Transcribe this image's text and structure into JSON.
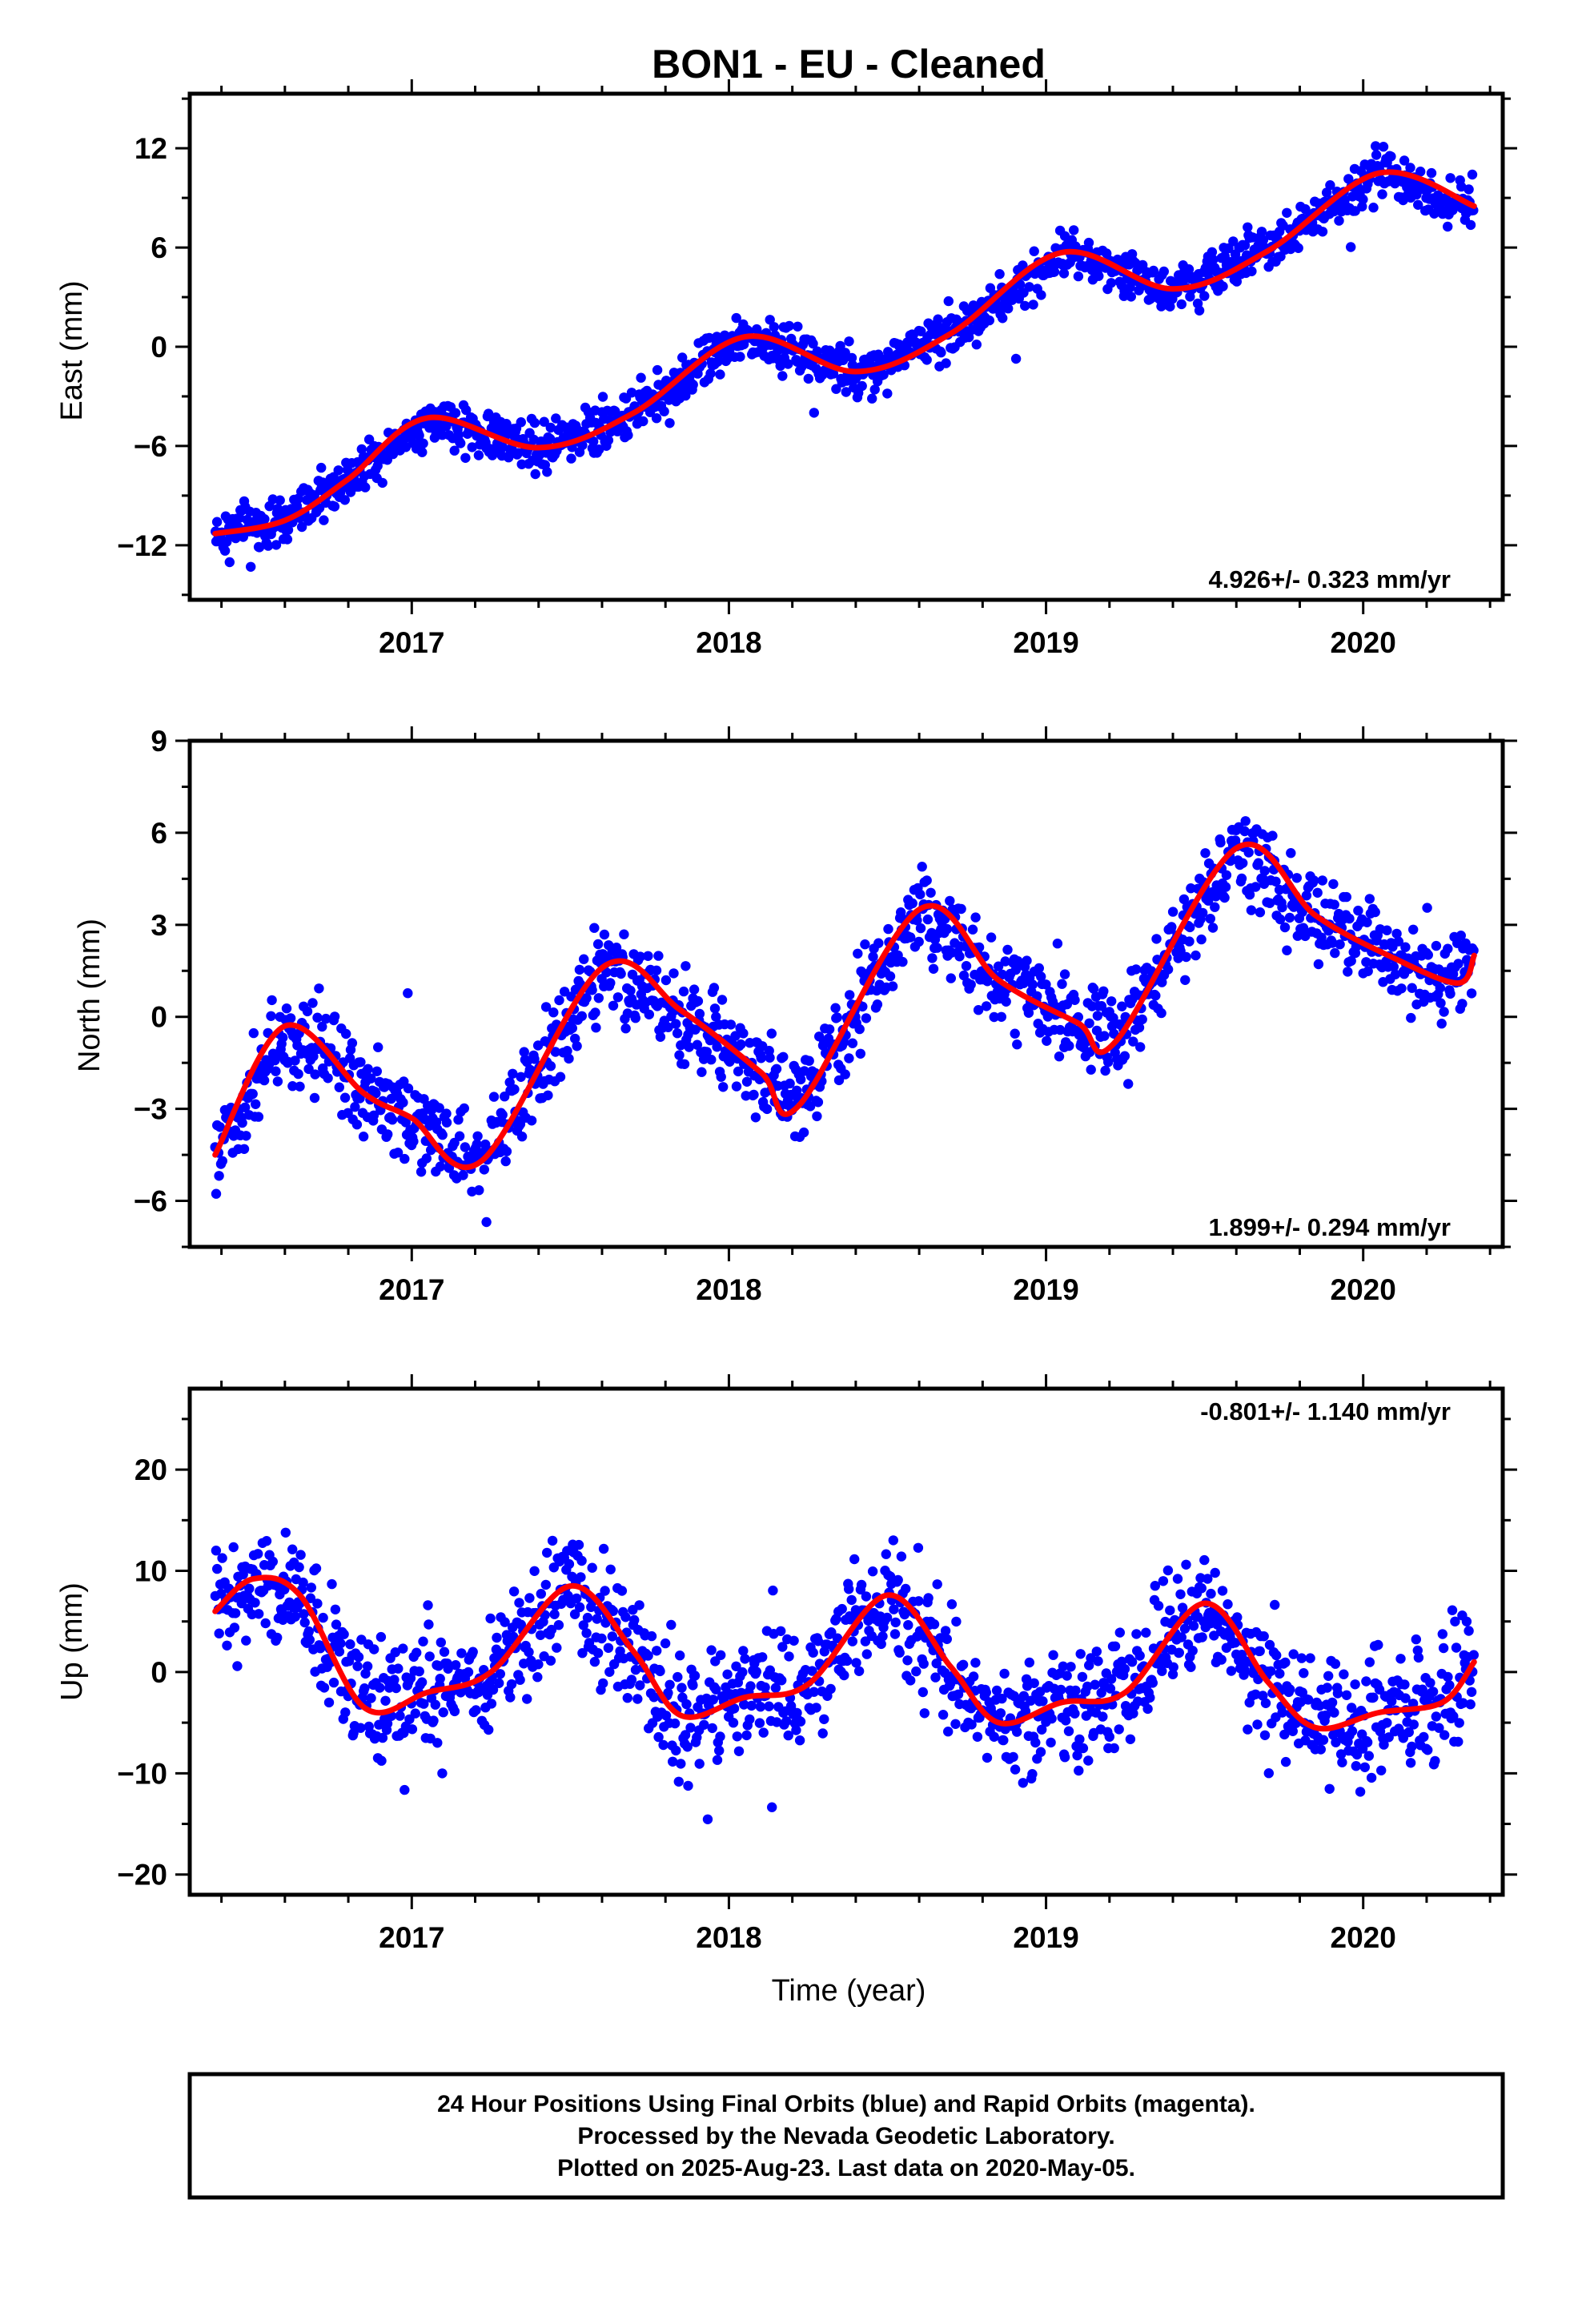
{
  "title": "BON1  - EU - Cleaned",
  "colors": {
    "final_orbits": "#0000ff",
    "fit": "#ff0000",
    "frame": "#000000",
    "background": "#ffffff"
  },
  "footer": {
    "line1": "24 Hour Positions Using Final Orbits (blue) and Rapid Orbits (magenta).",
    "line2": "Processed by the Nevada Geodetic Laboratory.",
    "line3": "Plotted on 2025-Aug-23. Last data on 2020-May-05."
  },
  "chart_data": [
    {
      "type": "scatter",
      "component": "east",
      "ylabel": "East (mm)",
      "xlabel": "",
      "rate_label": "4.926+/- 0.323 mm/yr",
      "rate_position": "bottom-right",
      "xlim": [
        2016.3,
        2020.44
      ],
      "ylim": [
        -15.3,
        15.3
      ],
      "xticks": [
        2017,
        2018,
        2019,
        2020
      ],
      "yticks": [
        -12,
        -6,
        0,
        6,
        12
      ],
      "grid": false,
      "trend_start": -11.5,
      "trend_rate": 4.926,
      "seasonal_amplitude": 2.2,
      "noise": 1.0,
      "points_per_year": 330,
      "fit_line": {
        "x": [
          2016.38,
          2016.6,
          2016.8,
          2017.05,
          2017.4,
          2017.7,
          2018.05,
          2018.4,
          2018.7,
          2019.05,
          2019.4,
          2019.7,
          2020.05,
          2020.35
        ],
        "y": [
          -11.3,
          -10.5,
          -8.0,
          -4.3,
          -6.1,
          -4.0,
          0.6,
          -1.5,
          0.8,
          5.7,
          3.5,
          5.8,
          10.5,
          8.5
        ]
      }
    },
    {
      "type": "scatter",
      "component": "north",
      "ylabel": "North (mm)",
      "xlabel": "",
      "rate_label": "1.899+/- 0.294 mm/yr",
      "rate_position": "bottom-right",
      "xlim": [
        2016.3,
        2020.44
      ],
      "ylim": [
        -7.5,
        9.0
      ],
      "xticks": [
        2017,
        2018,
        2019,
        2020
      ],
      "yticks": [
        -6,
        -3,
        0,
        3,
        6,
        9
      ],
      "grid": false,
      "trend_start": -3.0,
      "trend_rate": 1.899,
      "seasonal_amplitude": 2.4,
      "noise": 1.0,
      "points_per_year": 330,
      "fit_line": {
        "x": [
          2016.38,
          2016.6,
          2016.85,
          2017.0,
          2017.22,
          2017.6,
          2017.85,
          2018.1,
          2018.22,
          2018.6,
          2018.85,
          2019.1,
          2019.22,
          2019.6,
          2019.85,
          2020.1,
          2020.3,
          2020.35
        ],
        "y": [
          -4.5,
          -0.3,
          -2.5,
          -3.3,
          -4.7,
          1.6,
          0.2,
          -1.8,
          -2.9,
          3.5,
          1.2,
          -0.2,
          -0.8,
          5.5,
          3.3,
          1.9,
          1.1,
          2.0
        ]
      }
    },
    {
      "type": "scatter",
      "component": "up",
      "ylabel": "Up (mm)",
      "xlabel": "Time (year)",
      "rate_label": "-0.801+/- 1.140 mm/yr",
      "rate_position": "top-right",
      "xlim": [
        2016.3,
        2020.44
      ],
      "ylim": [
        -22,
        28
      ],
      "xticks": [
        2017,
        2018,
        2019,
        2020
      ],
      "yticks": [
        -20,
        -10,
        0,
        10,
        20
      ],
      "grid": false,
      "trend_start": 1.0,
      "trend_rate": -0.801,
      "seasonal_amplitude": 6.0,
      "noise": 4.0,
      "points_per_year": 330,
      "fit_line": {
        "x": [
          2016.38,
          2016.5,
          2016.65,
          2016.85,
          2017.05,
          2017.25,
          2017.5,
          2017.7,
          2017.85,
          2018.05,
          2018.25,
          2018.5,
          2018.7,
          2018.85,
          2019.05,
          2019.25,
          2019.5,
          2019.7,
          2019.85,
          2020.05,
          2020.25,
          2020.35
        ],
        "y": [
          6.0,
          9.2,
          7.5,
          -3.5,
          -2.0,
          0.0,
          8.5,
          2.0,
          -4.3,
          -2.5,
          -1.2,
          7.6,
          0.5,
          -5.0,
          -3.0,
          -2.0,
          6.8,
          -1.0,
          -5.5,
          -4.0,
          -3.0,
          1.0
        ]
      }
    }
  ]
}
